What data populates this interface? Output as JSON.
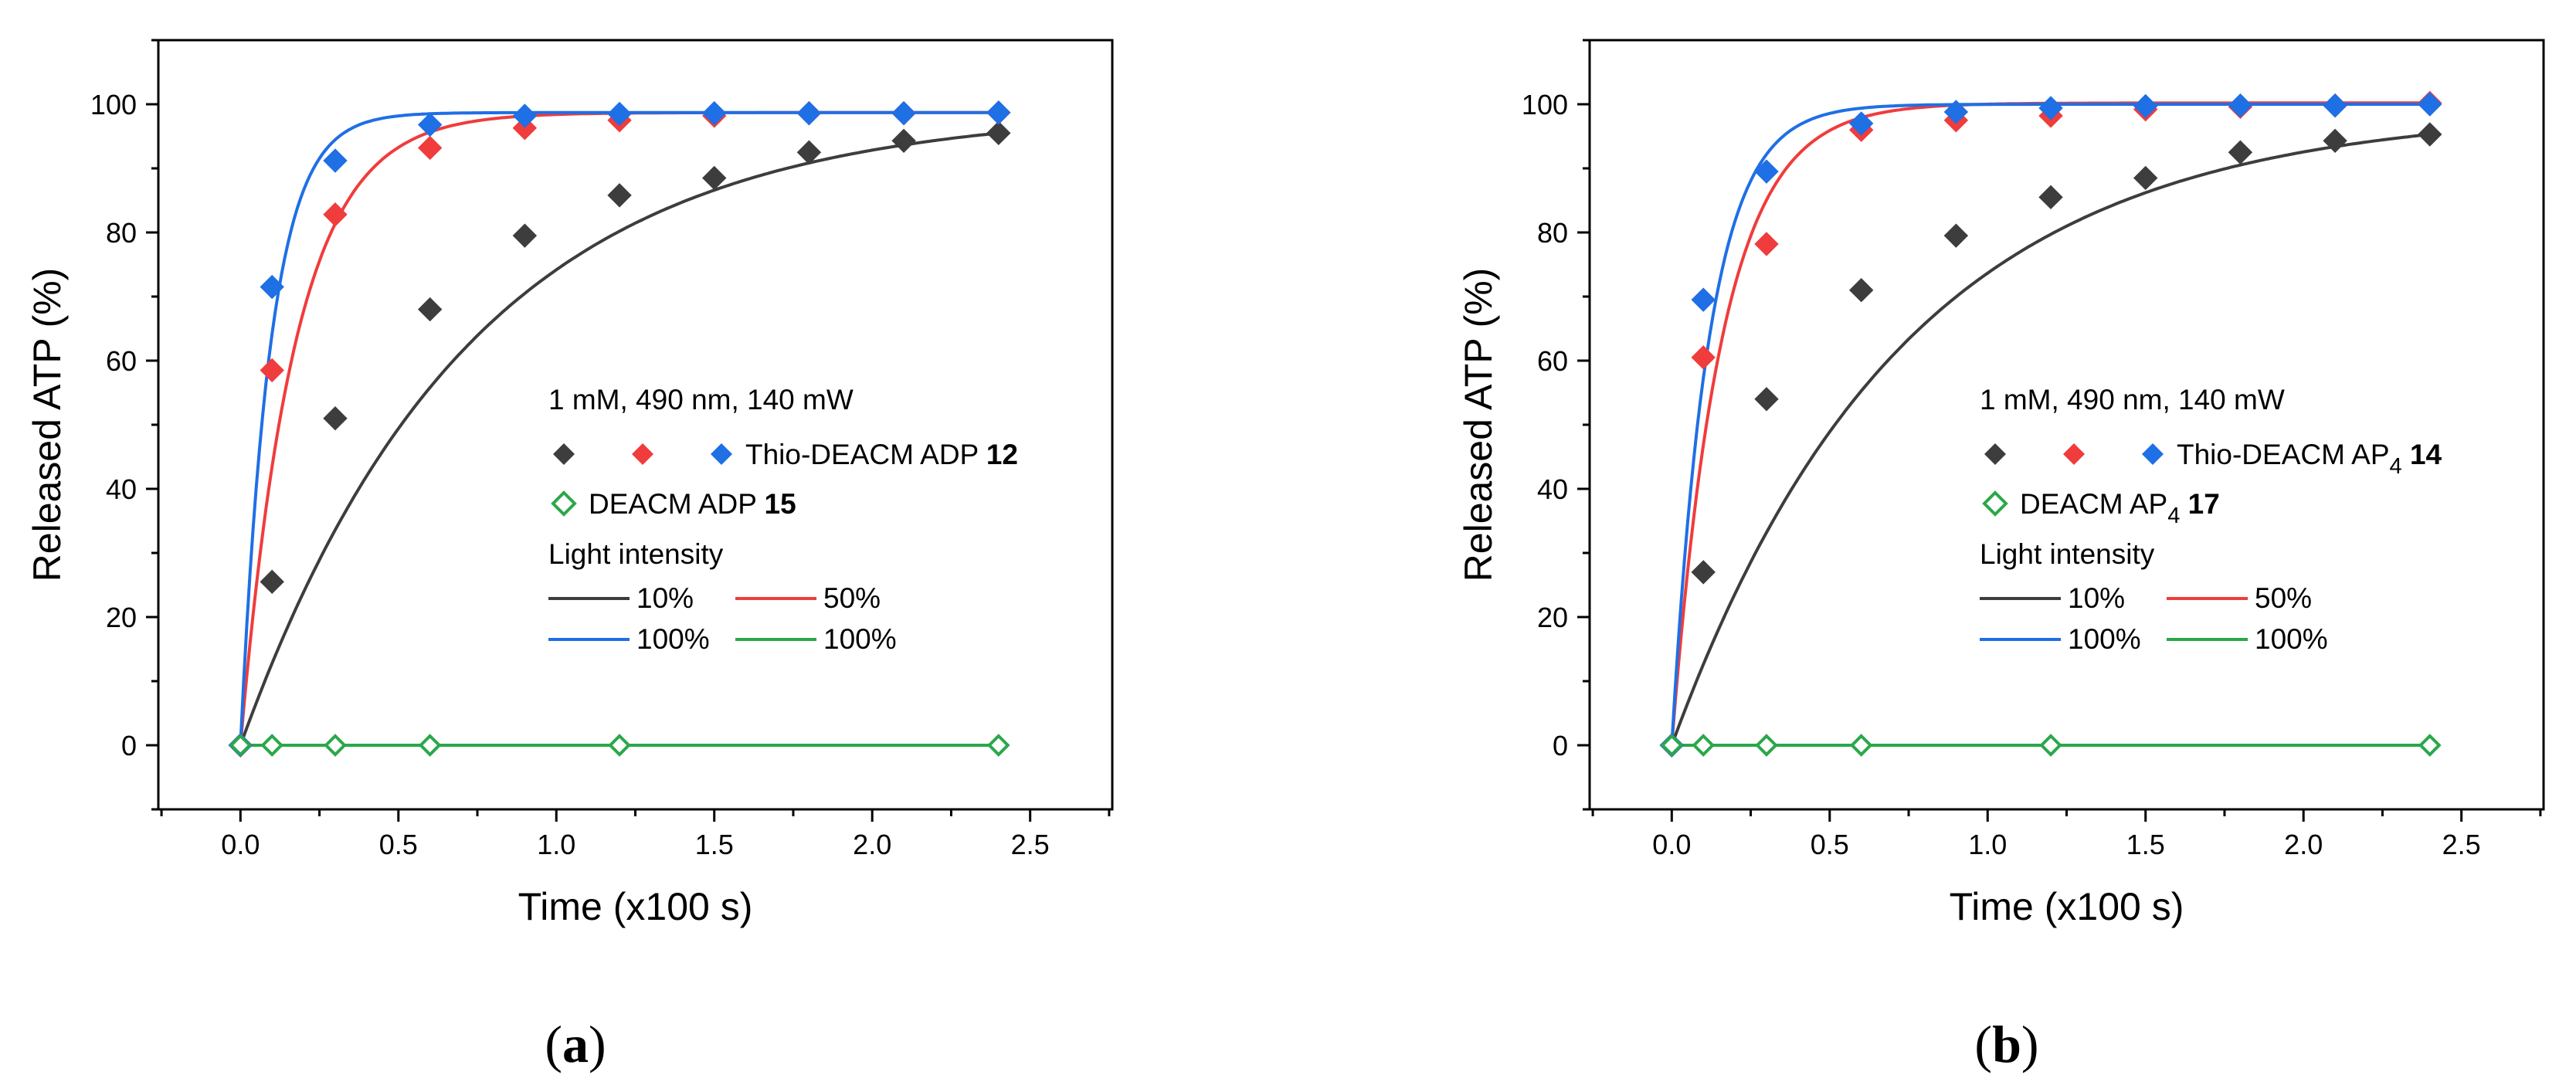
{
  "colors": {
    "gray": "#3d3d3d",
    "red": "#f03c3c",
    "blue": "#1f6fe5",
    "green": "#2aa84a"
  },
  "chart_data": [
    {
      "type": "scatter",
      "caption": {
        "open": "(",
        "letter": "a",
        "close": ")"
      },
      "xlabel": "Time (x100 s)",
      "ylabel": "Released ATP (%)",
      "xlim": [
        -0.26,
        2.76
      ],
      "ylim": [
        -10,
        110
      ],
      "xticks": [
        "0.0",
        "0.5",
        "1.0",
        "1.5",
        "2.0",
        "2.5"
      ],
      "yticks": [
        "0",
        "20",
        "40",
        "60",
        "80",
        "100"
      ],
      "legend": {
        "placement": "center-right",
        "condition": "1 mM, 490 nm, 140 mW",
        "compound1_name": "Thio-DEACM ADP ",
        "compound1_number": "12",
        "compound2_name": "DEACM ADP ",
        "compound2_number": "15",
        "intensity_title": "Light intensity",
        "lines": [
          "10%",
          "50%",
          "100%",
          "100%"
        ]
      },
      "series": [
        {
          "name": "10%",
          "color": "gray",
          "marker": "filled",
          "x": [
            0,
            0.1,
            0.3,
            0.6,
            0.9,
            1.2,
            1.5,
            1.8,
            2.1,
            2.4
          ],
          "y": [
            0,
            25.5,
            51,
            68,
            79.5,
            85.8,
            88.5,
            92.5,
            94.3,
            95.5
          ],
          "fit_k": 1.38
        },
        {
          "name": "50%",
          "color": "red",
          "marker": "filled",
          "x": [
            0,
            0.1,
            0.3,
            0.6,
            0.9,
            1.2,
            1.5,
            1.8,
            2.1,
            2.4
          ],
          "y": [
            0,
            58.5,
            82.8,
            93.2,
            96.3,
            97.5,
            98.2,
            98.6,
            98.6,
            98.7
          ],
          "fit_k": 5.8
        },
        {
          "name": "100%",
          "color": "blue",
          "marker": "filled",
          "x": [
            0,
            0.1,
            0.3,
            0.6,
            0.9,
            1.2,
            1.5,
            1.8,
            2.1,
            2.4
          ],
          "y": [
            0,
            71.5,
            91.2,
            96.8,
            98.2,
            98.5,
            98.6,
            98.6,
            98.6,
            98.7
          ],
          "fit_k": 10.5
        },
        {
          "name": "100% DEACM",
          "color": "green",
          "marker": "open",
          "x": [
            0,
            0.1,
            0.3,
            0.6,
            1.2,
            2.4
          ],
          "y": [
            0,
            0,
            0,
            0,
            0,
            0
          ]
        }
      ]
    },
    {
      "type": "scatter",
      "caption": {
        "open": "(",
        "letter": "b",
        "close": ")"
      },
      "xlabel": "Time (x100 s)",
      "ylabel": "Released ATP (%)",
      "xlim": [
        -0.26,
        2.76
      ],
      "ylim": [
        -10,
        110
      ],
      "xticks": [
        "0.0",
        "0.5",
        "1.0",
        "1.5",
        "2.0",
        "2.5"
      ],
      "yticks": [
        "0",
        "20",
        "40",
        "60",
        "80",
        "100"
      ],
      "legend": {
        "placement": "center-right",
        "condition": "1 mM, 490 nm, 140 mW",
        "compound1_name": "Thio-DEACM AP",
        "compound1_sub": "4",
        "compound1_number": "14",
        "compound2_name": "DEACM AP",
        "compound2_sub": "4",
        "compound2_number": "17",
        "intensity_title": "Light intensity",
        "lines": [
          "10%",
          "50%",
          "100%",
          "100%"
        ]
      },
      "series": [
        {
          "name": "10%",
          "color": "gray",
          "marker": "filled",
          "x": [
            0,
            0.1,
            0.3,
            0.6,
            0.9,
            1.2,
            1.5,
            1.8,
            2.1,
            2.4
          ],
          "y": [
            0,
            27,
            54,
            71,
            79.5,
            85.5,
            88.5,
            92.5,
            94.3,
            95.3
          ],
          "fit_k": 1.36
        },
        {
          "name": "50%",
          "color": "red",
          "marker": "filled",
          "x": [
            0,
            0.1,
            0.3,
            0.6,
            0.9,
            1.2,
            1.5,
            1.8,
            2.1,
            2.4
          ],
          "y": [
            0,
            60.5,
            78.2,
            96,
            97.5,
            98.2,
            99.2,
            99.6,
            99.8,
            100.2
          ],
          "fit_k": 6.3
        },
        {
          "name": "100%",
          "color": "blue",
          "marker": "filled",
          "x": [
            0,
            0.1,
            0.3,
            0.6,
            0.9,
            1.2,
            1.5,
            1.8,
            2.1,
            2.4
          ],
          "y": [
            0,
            69.5,
            89.5,
            97,
            98.8,
            99.4,
            99.7,
            99.8,
            99.8,
            100
          ],
          "fit_k": 8.5
        },
        {
          "name": "100% DEACM",
          "color": "green",
          "marker": "open",
          "x": [
            0,
            0.1,
            0.3,
            0.6,
            1.2,
            2.4
          ],
          "y": [
            0,
            0,
            0,
            0,
            0,
            0
          ]
        }
      ]
    }
  ]
}
